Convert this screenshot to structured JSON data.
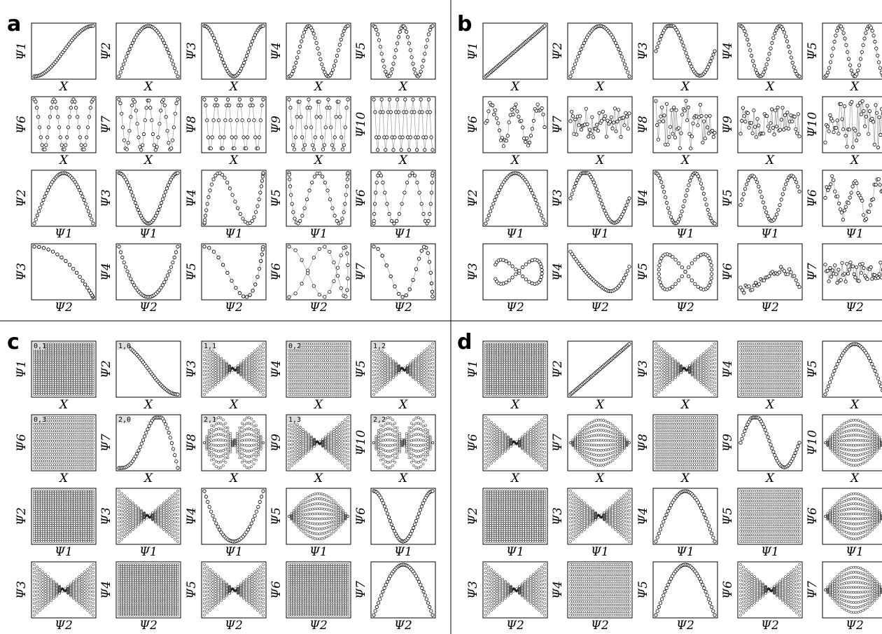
{
  "panels": [
    {
      "letter": "a",
      "rows": [
        [
          {
            "y": "Ψ1",
            "x": "X",
            "p": "s1"
          },
          {
            "y": "Ψ2",
            "x": "X",
            "p": "h2"
          },
          {
            "y": "Ψ3",
            "x": "X",
            "p": "w3"
          },
          {
            "y": "Ψ4",
            "x": "X",
            "p": "w4"
          },
          {
            "y": "Ψ5",
            "x": "X",
            "p": "w5"
          }
        ],
        [
          {
            "y": "Ψ6",
            "x": "X",
            "p": "w7"
          },
          {
            "y": "Ψ7",
            "x": "X",
            "p": "w9"
          },
          {
            "y": "Ψ8",
            "x": "X",
            "p": "w11"
          },
          {
            "y": "Ψ9",
            "x": "X",
            "p": "w13"
          },
          {
            "y": "Ψ10",
            "x": "X",
            "p": "w16"
          }
        ],
        [
          {
            "y": "Ψ2",
            "x": "Ψ1",
            "p": "h2"
          },
          {
            "y": "Ψ3",
            "x": "Ψ1",
            "p": "w3"
          },
          {
            "y": "Ψ4",
            "x": "Ψ1",
            "p": "sp4"
          },
          {
            "y": "Ψ5",
            "x": "Ψ1",
            "p": "sp5"
          },
          {
            "y": "Ψ6",
            "x": "Ψ1",
            "p": "sp6"
          }
        ],
        [
          {
            "y": "Ψ3",
            "x": "Ψ2",
            "p": "fish"
          },
          {
            "y": "Ψ4",
            "x": "Ψ2",
            "p": "bowl"
          },
          {
            "y": "Ψ5",
            "x": "Ψ2",
            "p": "sc5"
          },
          {
            "y": "Ψ6",
            "x": "Ψ2",
            "p": "sc6"
          },
          {
            "y": "Ψ7",
            "x": "Ψ2",
            "p": "sc7"
          }
        ]
      ]
    },
    {
      "letter": "b",
      "rows": [
        [
          {
            "y": "Ψ1",
            "x": "X",
            "p": "line"
          },
          {
            "y": "Ψ2",
            "x": "X",
            "p": "h2"
          },
          {
            "y": "Ψ3",
            "x": "X",
            "p": "cub"
          },
          {
            "y": "Ψ4",
            "x": "X",
            "p": "w4b"
          },
          {
            "y": "Ψ5",
            "x": "X",
            "p": "w5b"
          }
        ],
        [
          {
            "y": "Ψ6",
            "x": "X",
            "p": "noisy1"
          },
          {
            "y": "Ψ7",
            "x": "X",
            "p": "noisy2"
          },
          {
            "y": "Ψ8",
            "x": "X",
            "p": "noisy3"
          },
          {
            "y": "Ψ9",
            "x": "X",
            "p": "noisy2"
          },
          {
            "y": "Ψ10",
            "x": "X",
            "p": "noisy3"
          }
        ],
        [
          {
            "y": "Ψ2",
            "x": "Ψ1",
            "p": "h2"
          },
          {
            "y": "Ψ3",
            "x": "Ψ1",
            "p": "cub"
          },
          {
            "y": "Ψ4",
            "x": "Ψ1",
            "p": "w4b"
          },
          {
            "y": "Ψ5",
            "x": "Ψ1",
            "p": "cub2"
          },
          {
            "y": "Ψ6",
            "x": "Ψ1",
            "p": "noisy1"
          }
        ],
        [
          {
            "y": "Ψ3",
            "x": "Ψ2",
            "p": "loop"
          },
          {
            "y": "Ψ4",
            "x": "Ψ2",
            "p": "bowl2"
          },
          {
            "y": "Ψ5",
            "x": "Ψ2",
            "p": "fig8"
          },
          {
            "y": "Ψ6",
            "x": "Ψ2",
            "p": "sc6b"
          },
          {
            "y": "Ψ7",
            "x": "Ψ2",
            "p": "sc7b"
          }
        ]
      ]
    },
    {
      "letter": "c",
      "rows": [
        [
          {
            "y": "Ψ1",
            "x": "X",
            "p": "grid",
            "tag": "0,1"
          },
          {
            "y": "Ψ2",
            "x": "X",
            "p": "dsig",
            "tag": "1,0"
          },
          {
            "y": "Ψ3",
            "x": "X",
            "p": "bow",
            "tag": "1,1"
          },
          {
            "y": "Ψ4",
            "x": "X",
            "p": "hgrid",
            "tag": "0,2"
          },
          {
            "y": "Ψ5",
            "x": "X",
            "p": "bow",
            "tag": "1,2"
          }
        ],
        [
          {
            "y": "Ψ6",
            "x": "X",
            "p": "hgrid",
            "tag": "0,3"
          },
          {
            "y": "Ψ7",
            "x": "X",
            "p": "hump",
            "tag": "2,0"
          },
          {
            "y": "Ψ8",
            "x": "X",
            "p": "eye2",
            "tag": "2,1"
          },
          {
            "y": "Ψ9",
            "x": "X",
            "p": "bow",
            "tag": "1,3"
          },
          {
            "y": "Ψ10",
            "x": "X",
            "p": "eye2",
            "tag": "2,2"
          }
        ],
        [
          {
            "y": "Ψ2",
            "x": "Ψ1",
            "p": "grid"
          },
          {
            "y": "Ψ3",
            "x": "Ψ1",
            "p": "bow"
          },
          {
            "y": "Ψ4",
            "x": "Ψ1",
            "p": "bowl"
          },
          {
            "y": "Ψ5",
            "x": "Ψ1",
            "p": "eye"
          },
          {
            "y": "Ψ6",
            "x": "Ψ1",
            "p": "w3"
          }
        ],
        [
          {
            "y": "Ψ3",
            "x": "Ψ2",
            "p": "bow"
          },
          {
            "y": "Ψ4",
            "x": "Ψ2",
            "p": "grid"
          },
          {
            "y": "Ψ5",
            "x": "Ψ2",
            "p": "bow"
          },
          {
            "y": "Ψ6",
            "x": "Ψ2",
            "p": "grid"
          },
          {
            "y": "Ψ7",
            "x": "Ψ2",
            "p": "h2"
          }
        ]
      ]
    },
    {
      "letter": "d",
      "rows": [
        [
          {
            "y": "Ψ1",
            "x": "X",
            "p": "grid"
          },
          {
            "y": "Ψ2",
            "x": "X",
            "p": "line"
          },
          {
            "y": "Ψ3",
            "x": "X",
            "p": "bow"
          },
          {
            "y": "Ψ4",
            "x": "X",
            "p": "hgrid"
          },
          {
            "y": "Ψ5",
            "x": "X",
            "p": "h2"
          }
        ],
        [
          {
            "y": "Ψ6",
            "x": "X",
            "p": "bow"
          },
          {
            "y": "Ψ7",
            "x": "X",
            "p": "eye"
          },
          {
            "y": "Ψ8",
            "x": "X",
            "p": "hgrid"
          },
          {
            "y": "Ψ9",
            "x": "X",
            "p": "cub"
          },
          {
            "y": "Ψ10",
            "x": "X",
            "p": "eye"
          }
        ],
        [
          {
            "y": "Ψ2",
            "x": "Ψ1",
            "p": "grid"
          },
          {
            "y": "Ψ3",
            "x": "Ψ1",
            "p": "bow"
          },
          {
            "y": "Ψ4",
            "x": "Ψ1",
            "p": "h2"
          },
          {
            "y": "Ψ5",
            "x": "Ψ1",
            "p": "hgrid"
          },
          {
            "y": "Ψ6",
            "x": "Ψ1",
            "p": "eye"
          }
        ],
        [
          {
            "y": "Ψ3",
            "x": "Ψ2",
            "p": "bow"
          },
          {
            "y": "Ψ4",
            "x": "Ψ2",
            "p": "hgrid"
          },
          {
            "y": "Ψ5",
            "x": "Ψ2",
            "p": "h2"
          },
          {
            "y": "Ψ6",
            "x": "Ψ2",
            "p": "bow"
          },
          {
            "y": "Ψ7",
            "x": "Ψ2",
            "p": "eye"
          }
        ]
      ]
    }
  ]
}
